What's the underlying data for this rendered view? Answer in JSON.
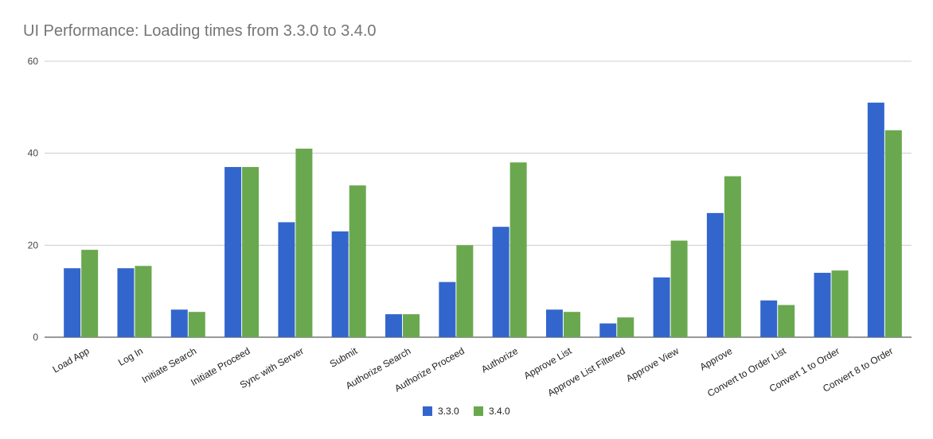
{
  "chart_data": {
    "type": "bar",
    "title": "UI Performance: Loading times from 3.3.0 to 3.4.0",
    "categories": [
      "Load App",
      "Log In",
      "Initiate Search",
      "Initiate Proceed",
      "Sync with Server",
      "Submit",
      "Authorize Search",
      "Authorize Proceed",
      "Authorize",
      "Approve List",
      "Approve List Filtered",
      "Approve View",
      "Approve",
      "Convert to Order List",
      "Convert 1 to Order",
      "Convert 8 to Order"
    ],
    "series": [
      {
        "name": "3.3.0",
        "color": "#3366cc",
        "values": [
          15,
          15,
          6,
          37,
          25,
          23,
          5,
          12,
          24,
          6,
          3,
          13,
          27,
          8,
          14,
          51
        ]
      },
      {
        "name": "3.4.0",
        "color": "#6aa84f",
        "values": [
          19,
          15.5,
          5.5,
          37,
          41,
          33,
          5,
          20,
          38,
          5.5,
          4.3,
          21,
          35,
          7,
          14.5,
          45
        ]
      }
    ],
    "xlabel": "",
    "ylabel": "",
    "ylim": [
      0,
      60
    ],
    "yticks": [
      0,
      20,
      40,
      60
    ],
    "grid": true,
    "legend_position": "bottom"
  }
}
